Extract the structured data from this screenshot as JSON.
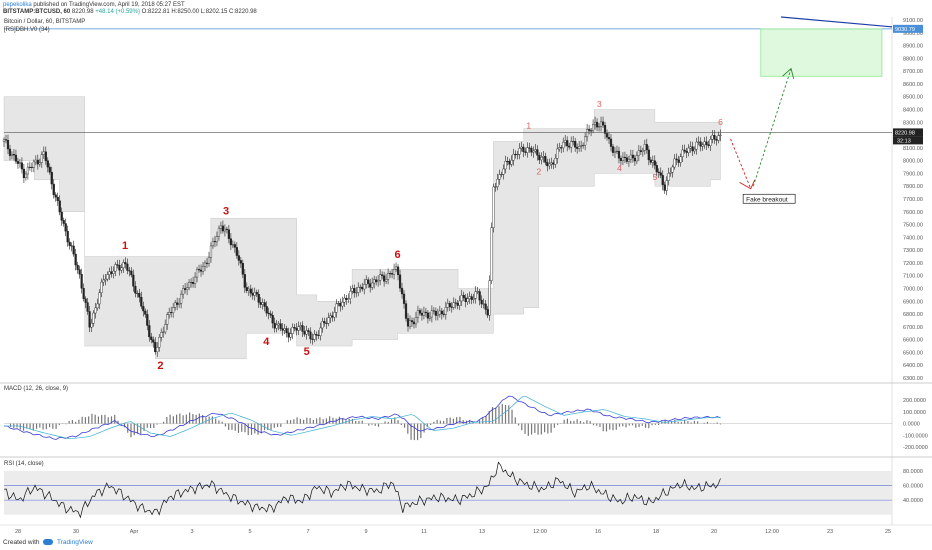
{
  "header": {
    "author": "pepekolika",
    "published": "published on TradingView.com, April 19, 2018 05:27 EST",
    "symbol": "BITSTAMP:BTCUSD, 60",
    "last_price": "8220.98",
    "change": "+48.14 (+0.59%)",
    "ohlc": "O:8222.81 H:8250.00 L:8202.15 C:8220.98",
    "chart_title": "Bitcoin / Dollar, 60, BITSTAMP",
    "indicator": "[RS]DBH.V0 (34)"
  },
  "colors": {
    "up": "#26a69a",
    "down": "#ef5350",
    "wave": "#cc1111",
    "wave_small": "#e06060",
    "macd": "#3b3bd6",
    "signal": "#3bafd6",
    "box": "#8be88b"
  },
  "price_pane": {
    "ylim": [
      6300,
      9100
    ],
    "ticks": [
      "9100.00",
      "9000.00",
      "8900.00",
      "8800.00",
      "8700.00",
      "8600.00",
      "8500.00",
      "8400.00",
      "8300.00",
      "8200.00",
      "8100.00",
      "8000.00",
      "7900.00",
      "7800.00",
      "7700.00",
      "7600.00",
      "7500.00",
      "7400.00",
      "7300.00",
      "7200.00",
      "7100.00",
      "7000.00",
      "6900.00",
      "6800.00",
      "6700.00",
      "6600.00",
      "6500.00",
      "6400.00",
      "6300.00"
    ],
    "price_label": "8220.98",
    "countdown": "32:13",
    "target_label": "9030.79",
    "target_value": 9030.79,
    "target_box": {
      "t_start": 150,
      "t_end": 174,
      "y_low": 8660,
      "y_high": 9030
    },
    "annotation": "Fake breakout"
  },
  "chart_data": {
    "type": "candlestick",
    "title": "Bitcoin / Dollar, 60, BITSTAMP",
    "x_tick_labels": [
      "28",
      "30",
      "Apr",
      "3",
      "5",
      "7",
      "9",
      "11",
      "13",
      "12:00",
      "16",
      "18",
      "20",
      "12:00",
      "23",
      "25"
    ],
    "close_path": [
      [
        0,
        8150
      ],
      [
        4,
        7900
      ],
      [
        8,
        8050
      ],
      [
        11,
        7600
      ],
      [
        15,
        7100
      ],
      [
        17,
        6700
      ],
      [
        20,
        7100
      ],
      [
        24,
        7200
      ],
      [
        27,
        6900
      ],
      [
        30,
        6500
      ],
      [
        32,
        6750
      ],
      [
        36,
        7000
      ],
      [
        40,
        7200
      ],
      [
        43,
        7500
      ],
      [
        46,
        7300
      ],
      [
        48,
        7000
      ],
      [
        51,
        6900
      ],
      [
        53,
        6750
      ],
      [
        56,
        6650
      ],
      [
        59,
        6700
      ],
      [
        61,
        6600
      ],
      [
        64,
        6750
      ],
      [
        67,
        6900
      ],
      [
        70,
        7000
      ],
      [
        73,
        7050
      ],
      [
        76,
        7100
      ],
      [
        78,
        7150
      ],
      [
        80,
        6700
      ],
      [
        82,
        6800
      ],
      [
        86,
        6800
      ],
      [
        90,
        6900
      ],
      [
        94,
        6950
      ],
      [
        96,
        6800
      ],
      [
        97,
        7800
      ],
      [
        100,
        8000
      ],
      [
        103,
        8100
      ],
      [
        106,
        8050
      ],
      [
        108,
        7950
      ],
      [
        111,
        8150
      ],
      [
        114,
        8100
      ],
      [
        117,
        8300
      ],
      [
        119,
        8250
      ],
      [
        121,
        8050
      ],
      [
        124,
        8000
      ],
      [
        127,
        8100
      ],
      [
        129,
        7950
      ],
      [
        131,
        7800
      ],
      [
        133,
        8000
      ],
      [
        136,
        8100
      ],
      [
        140,
        8150
      ],
      [
        142,
        8200
      ]
    ],
    "channel": [
      [
        0,
        8500,
        8000
      ],
      [
        6,
        8500,
        7850
      ],
      [
        11,
        8500,
        7600
      ],
      [
        16,
        7250,
        6550
      ],
      [
        24,
        7250,
        6550
      ],
      [
        30,
        7250,
        6450
      ],
      [
        41,
        7550,
        6450
      ],
      [
        48,
        7550,
        6650
      ],
      [
        58,
        6950,
        6550
      ],
      [
        62,
        6900,
        6550
      ],
      [
        69,
        7150,
        6600
      ],
      [
        78,
        7150,
        6650
      ],
      [
        90,
        7000,
        6650
      ],
      [
        97,
        8150,
        6800
      ],
      [
        103,
        8250,
        6850
      ],
      [
        106,
        8250,
        7800
      ],
      [
        117,
        8400,
        7900
      ],
      [
        129,
        8300,
        7800
      ],
      [
        140,
        8300,
        7850
      ]
    ],
    "waves_major": [
      {
        "label": "1",
        "t": 24,
        "y": 7310
      },
      {
        "label": "2",
        "t": 31,
        "y": 6370
      },
      {
        "label": "3",
        "t": 44,
        "y": 7580
      },
      {
        "label": "4",
        "t": 52,
        "y": 6560
      },
      {
        "label": "5",
        "t": 60,
        "y": 6480
      },
      {
        "label": "6",
        "t": 78,
        "y": 7240
      }
    ],
    "waves_minor": [
      {
        "label": "1",
        "t": 104,
        "y": 8250
      },
      {
        "label": "2",
        "t": 106,
        "y": 7890
      },
      {
        "label": "3",
        "t": 118,
        "y": 8420
      },
      {
        "label": "4",
        "t": 122,
        "y": 7920
      },
      {
        "label": "5",
        "t": 129,
        "y": 7850
      },
      {
        "label": "6",
        "t": 142,
        "y": 8280
      }
    ],
    "macd": {
      "title": "MACD (12, 26, close, 9)",
      "ticks": [
        "200.0000",
        "100.0000",
        "0.0000",
        "-100.0000",
        "-200.0000"
      ],
      "ylim": [
        -250,
        260
      ],
      "values": [
        [
          0,
          -20
        ],
        [
          5,
          -80
        ],
        [
          10,
          -130
        ],
        [
          14,
          -110
        ],
        [
          18,
          -40
        ],
        [
          22,
          20
        ],
        [
          26,
          -80
        ],
        [
          30,
          -110
        ],
        [
          34,
          -40
        ],
        [
          38,
          40
        ],
        [
          42,
          90
        ],
        [
          46,
          30
        ],
        [
          50,
          -60
        ],
        [
          54,
          -100
        ],
        [
          58,
          -60
        ],
        [
          62,
          -20
        ],
        [
          66,
          30
        ],
        [
          70,
          60
        ],
        [
          74,
          40
        ],
        [
          78,
          80
        ],
        [
          82,
          -60
        ],
        [
          86,
          -40
        ],
        [
          90,
          10
        ],
        [
          94,
          20
        ],
        [
          97,
          120
        ],
        [
          100,
          240
        ],
        [
          104,
          150
        ],
        [
          108,
          70
        ],
        [
          112,
          100
        ],
        [
          116,
          120
        ],
        [
          120,
          60
        ],
        [
          124,
          40
        ],
        [
          128,
          10
        ],
        [
          132,
          30
        ],
        [
          136,
          50
        ],
        [
          140,
          55
        ],
        [
          142,
          50
        ]
      ]
    },
    "rsi": {
      "title": "RSI (14, close)",
      "ticks": [
        "80.0000",
        "60.0000",
        "40.0000"
      ],
      "ylim": [
        10,
        95
      ],
      "upper": 60,
      "lower": 40,
      "values": [
        [
          0,
          52
        ],
        [
          3,
          40
        ],
        [
          6,
          58
        ],
        [
          9,
          45
        ],
        [
          12,
          30
        ],
        [
          15,
          22
        ],
        [
          18,
          48
        ],
        [
          21,
          60
        ],
        [
          24,
          45
        ],
        [
          27,
          30
        ],
        [
          30,
          22
        ],
        [
          33,
          45
        ],
        [
          37,
          55
        ],
        [
          41,
          62
        ],
        [
          44,
          48
        ],
        [
          47,
          38
        ],
        [
          50,
          30
        ],
        [
          53,
          28
        ],
        [
          56,
          44
        ],
        [
          59,
          38
        ],
        [
          62,
          58
        ],
        [
          65,
          50
        ],
        [
          68,
          62
        ],
        [
          71,
          55
        ],
        [
          74,
          52
        ],
        [
          77,
          65
        ],
        [
          79,
          30
        ],
        [
          82,
          38
        ],
        [
          86,
          44
        ],
        [
          90,
          40
        ],
        [
          93,
          48
        ],
        [
          96,
          60
        ],
        [
          98,
          88
        ],
        [
          101,
          70
        ],
        [
          104,
          60
        ],
        [
          107,
          55
        ],
        [
          110,
          68
        ],
        [
          113,
          50
        ],
        [
          116,
          60
        ],
        [
          119,
          48
        ],
        [
          122,
          38
        ],
        [
          125,
          45
        ],
        [
          128,
          36
        ],
        [
          131,
          50
        ],
        [
          134,
          62
        ],
        [
          137,
          56
        ],
        [
          140,
          60
        ],
        [
          142,
          62
        ]
      ]
    }
  },
  "footer": {
    "created": "Created with",
    "brand": "TradingView"
  }
}
